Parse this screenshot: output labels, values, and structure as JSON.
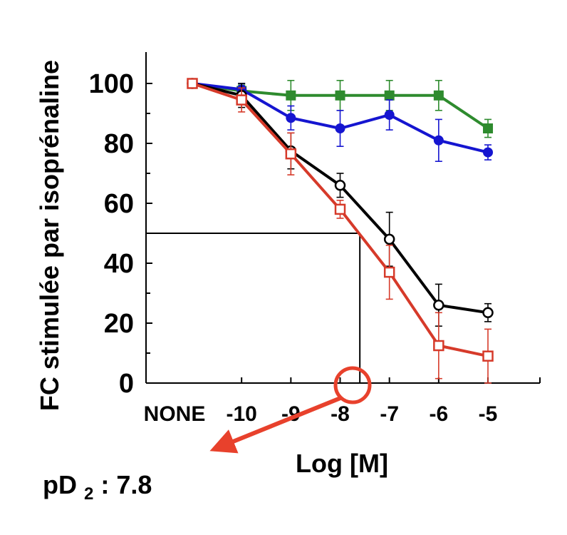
{
  "chart_data": {
    "type": "line",
    "ylabel": "FC stimulée par isoprénaline",
    "xlabel": "Log [M]",
    "ylim": [
      0,
      110
    ],
    "y_ticks": [
      "0",
      "20",
      "40",
      "60",
      "80",
      "100"
    ],
    "x_categories": [
      "NONE",
      "-10",
      "-9",
      "-8",
      "-7",
      "-6",
      "-5"
    ],
    "x_positions": [
      -11,
      -10,
      -9,
      -8,
      -7,
      -6,
      -5
    ],
    "series": [
      {
        "name": "green filled squares",
        "color": "#2e8b2e",
        "marker": "square-filled",
        "x": [
          -11,
          -10,
          -9,
          -8,
          -7,
          -6,
          -5
        ],
        "values": [
          100,
          97.5,
          96,
          96,
          96,
          96,
          85
        ],
        "errors": [
          1,
          2,
          5,
          5,
          5,
          5,
          3
        ]
      },
      {
        "name": "blue filled circles",
        "color": "#1515d0",
        "marker": "circle-filled",
        "x": [
          -11,
          -10,
          -9,
          -8,
          -7,
          -6,
          -5
        ],
        "values": [
          100,
          98,
          88.5,
          85,
          89.5,
          81,
          77
        ],
        "errors": [
          1,
          2,
          4,
          6,
          5,
          7,
          2.5
        ]
      },
      {
        "name": "black open circles",
        "color": "#000000",
        "marker": "circle-open",
        "x": [
          -11,
          -10,
          -9,
          -8,
          -7,
          -6,
          -5
        ],
        "values": [
          100,
          96,
          77.5,
          66,
          48,
          26,
          23.5
        ],
        "errors": [
          1,
          4,
          6,
          4,
          9,
          7,
          3
        ]
      },
      {
        "name": "red open squares",
        "color": "#d63a2a",
        "marker": "square-open",
        "x": [
          -11,
          -10,
          -9,
          -8,
          -7,
          -6,
          -5
        ],
        "values": [
          100,
          94.5,
          76.5,
          58,
          37,
          12.5,
          9
        ],
        "errors": [
          1,
          4,
          7,
          3,
          9,
          11,
          9
        ]
      }
    ],
    "annotations": {
      "half_max_y": 50,
      "ec50_x": -7.6,
      "pd2_label_main": "pD",
      "pd2_subscript": "2",
      "pd2_value": ": 7.8",
      "marker_color": "#e8412c"
    }
  }
}
